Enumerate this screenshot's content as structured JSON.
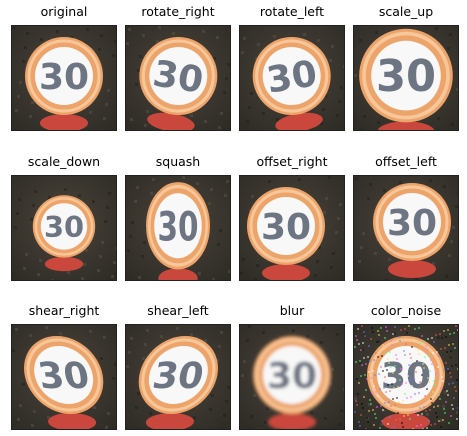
{
  "figure": {
    "panels": [
      {
        "title": "original",
        "sign_text": "30",
        "transform": "original"
      },
      {
        "title": "rotate_right",
        "sign_text": "30",
        "transform": "rotate_right"
      },
      {
        "title": "rotate_left",
        "sign_text": "30",
        "transform": "rotate_left"
      },
      {
        "title": "scale_up",
        "sign_text": "30",
        "transform": "scale_up"
      },
      {
        "title": "scale_down",
        "sign_text": "30",
        "transform": "scale_down"
      },
      {
        "title": "squash",
        "sign_text": "30",
        "transform": "squash"
      },
      {
        "title": "offset_right",
        "sign_text": "30",
        "transform": "offset_right"
      },
      {
        "title": "offset_left",
        "sign_text": "30",
        "transform": "offset_left"
      },
      {
        "title": "shear_right",
        "sign_text": "30",
        "transform": "shear_right"
      },
      {
        "title": "shear_left",
        "sign_text": "30",
        "transform": "shear_left"
      },
      {
        "title": "blur",
        "sign_text": "30",
        "transform": "blur"
      },
      {
        "title": "color_noise",
        "sign_text": "30",
        "transform": "color_noise"
      }
    ],
    "colors": {
      "background_dark": "#2f2c26",
      "ring_orange": "#eda46a",
      "ring_light": "#f7c79a",
      "sign_face": "#f8f8f8",
      "digit_color": "#6d7482",
      "post_red": "#c9473c"
    }
  }
}
